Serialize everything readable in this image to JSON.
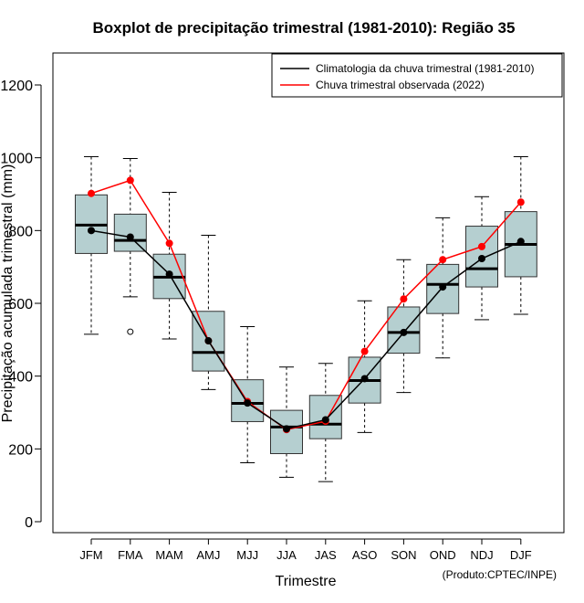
{
  "chart_data": {
    "type": "boxplot",
    "title": "Boxplot de precipitação trimestral (1981-2010): Região 35",
    "xlabel": "Trimestre",
    "ylabel": "Precipitação acumulada trimestral (mm)",
    "credit": "(Produto:CPTEC/INPE)",
    "ylim": [
      -40,
      1285
    ],
    "yticks": [
      0,
      200,
      400,
      600,
      800,
      1000,
      1200
    ],
    "categories": [
      "JFM",
      "FMA",
      "MAM",
      "AMJ",
      "MJJ",
      "JJA",
      "JAS",
      "ASO",
      "SON",
      "OND",
      "NDJ",
      "DJF"
    ],
    "box_color": "#b5cfd0",
    "boxes": [
      {
        "whisker_low": 515,
        "q1": 737,
        "median": 815,
        "q3": 898,
        "whisker_high": 1003,
        "outliers": []
      },
      {
        "whisker_low": 618,
        "q1": 743,
        "median": 773,
        "q3": 845,
        "whisker_high": 998,
        "outliers": [
          522
        ]
      },
      {
        "whisker_low": 502,
        "q1": 613,
        "median": 672,
        "q3": 735,
        "whisker_high": 905,
        "outliers": []
      },
      {
        "whisker_low": 363,
        "q1": 414,
        "median": 465,
        "q3": 578,
        "whisker_high": 787,
        "outliers": []
      },
      {
        "whisker_low": 162,
        "q1": 275,
        "median": 325,
        "q3": 390,
        "whisker_high": 536,
        "outliers": []
      },
      {
        "whisker_low": 122,
        "q1": 187,
        "median": 260,
        "q3": 306,
        "whisker_high": 425,
        "outliers": []
      },
      {
        "whisker_low": 110,
        "q1": 228,
        "median": 268,
        "q3": 347,
        "whisker_high": 435,
        "outliers": []
      },
      {
        "whisker_low": 245,
        "q1": 326,
        "median": 388,
        "q3": 452,
        "whisker_high": 607,
        "outliers": []
      },
      {
        "whisker_low": 355,
        "q1": 463,
        "median": 520,
        "q3": 590,
        "whisker_high": 720,
        "outliers": []
      },
      {
        "whisker_low": 450,
        "q1": 572,
        "median": 652,
        "q3": 707,
        "whisker_high": 835,
        "outliers": []
      },
      {
        "whisker_low": 555,
        "q1": 645,
        "median": 695,
        "q3": 812,
        "whisker_high": 893,
        "outliers": []
      },
      {
        "whisker_low": 570,
        "q1": 673,
        "median": 762,
        "q3": 852,
        "whisker_high": 1003,
        "outliers": []
      }
    ],
    "series": [
      {
        "name": "Climatologia da chuva trimestral (1981-2010)",
        "color": "#000000",
        "values": [
          800,
          782,
          680,
          497,
          326,
          255,
          280,
          393,
          520,
          645,
          723,
          770
        ]
      },
      {
        "name": "Chuva trimestral observada (2022)",
        "color": "#ff0000",
        "values": [
          902,
          938,
          765,
          497,
          330,
          253,
          276,
          468,
          612,
          720,
          756,
          878
        ]
      }
    ],
    "legend_position": "top-right"
  }
}
